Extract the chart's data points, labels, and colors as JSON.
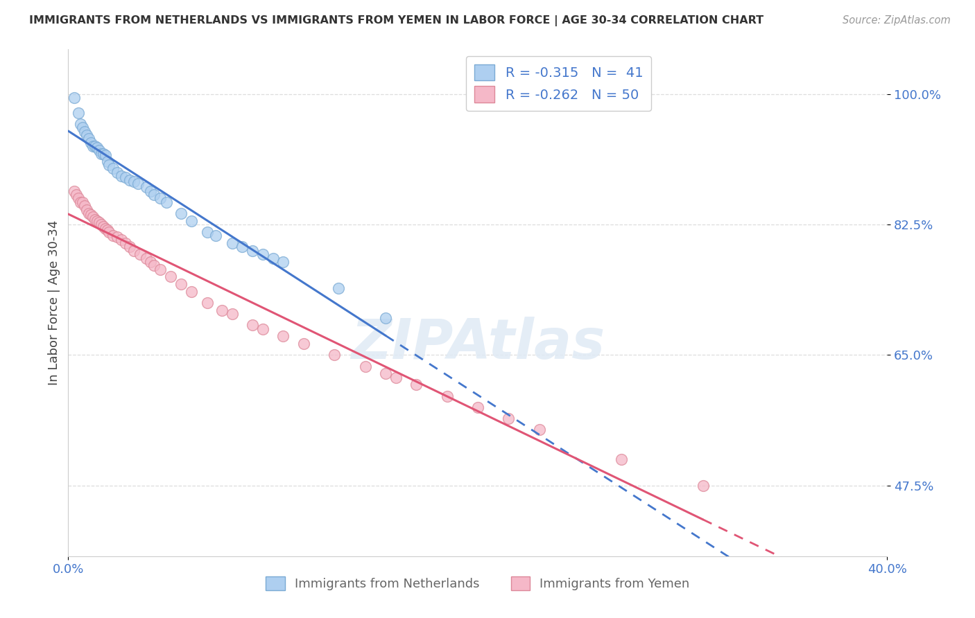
{
  "title": "IMMIGRANTS FROM NETHERLANDS VS IMMIGRANTS FROM YEMEN IN LABOR FORCE | AGE 30-34 CORRELATION CHART",
  "source": "Source: ZipAtlas.com",
  "ylabel": "In Labor Force | Age 30-34",
  "y_ticks": [
    1.0,
    0.825,
    0.65,
    0.475
  ],
  "y_tick_labels": [
    "100.0%",
    "82.5%",
    "65.0%",
    "47.5%"
  ],
  "xlim": [
    0.0,
    0.4
  ],
  "ylim": [
    0.38,
    1.06
  ],
  "background_color": "#ffffff",
  "watermark": "ZIPAtlas",
  "legend_r_netherlands": "-0.315",
  "legend_n_netherlands": "41",
  "legend_r_yemen": "-0.262",
  "legend_n_yemen": "50",
  "netherlands_color": "#aecff0",
  "netherlands_edge_color": "#7aaad4",
  "netherlands_line_color": "#4477cc",
  "yemen_color": "#f5b8c8",
  "yemen_edge_color": "#dd8899",
  "yemen_line_color": "#e05575",
  "scatter_size": 130,
  "scatter_alpha": 0.75,
  "netherlands_x": [
    0.003,
    0.005,
    0.006,
    0.007,
    0.008,
    0.009,
    0.01,
    0.011,
    0.012,
    0.013,
    0.014,
    0.015,
    0.016,
    0.017,
    0.018,
    0.019,
    0.02,
    0.022,
    0.024,
    0.026,
    0.028,
    0.03,
    0.032,
    0.034,
    0.038,
    0.04,
    0.042,
    0.045,
    0.048,
    0.055,
    0.06,
    0.068,
    0.072,
    0.08,
    0.085,
    0.09,
    0.095,
    0.1,
    0.105,
    0.132,
    0.155
  ],
  "netherlands_y": [
    0.995,
    0.975,
    0.96,
    0.955,
    0.95,
    0.945,
    0.94,
    0.935,
    0.93,
    0.93,
    0.928,
    0.925,
    0.92,
    0.92,
    0.918,
    0.91,
    0.905,
    0.9,
    0.895,
    0.89,
    0.888,
    0.885,
    0.883,
    0.88,
    0.875,
    0.87,
    0.865,
    0.86,
    0.855,
    0.84,
    0.83,
    0.815,
    0.81,
    0.8,
    0.795,
    0.79,
    0.785,
    0.78,
    0.775,
    0.74,
    0.7
  ],
  "yemen_x": [
    0.003,
    0.004,
    0.005,
    0.006,
    0.007,
    0.008,
    0.009,
    0.01,
    0.011,
    0.012,
    0.013,
    0.014,
    0.015,
    0.016,
    0.017,
    0.018,
    0.019,
    0.02,
    0.022,
    0.024,
    0.026,
    0.028,
    0.03,
    0.032,
    0.035,
    0.038,
    0.04,
    0.042,
    0.045,
    0.05,
    0.055,
    0.06,
    0.068,
    0.075,
    0.08,
    0.09,
    0.095,
    0.105,
    0.115,
    0.13,
    0.145,
    0.155,
    0.16,
    0.17,
    0.185,
    0.2,
    0.215,
    0.23,
    0.27,
    0.31
  ],
  "yemen_y": [
    0.87,
    0.865,
    0.86,
    0.855,
    0.855,
    0.85,
    0.845,
    0.84,
    0.838,
    0.835,
    0.832,
    0.83,
    0.828,
    0.825,
    0.822,
    0.82,
    0.818,
    0.815,
    0.81,
    0.808,
    0.805,
    0.8,
    0.795,
    0.79,
    0.785,
    0.78,
    0.775,
    0.77,
    0.765,
    0.755,
    0.745,
    0.735,
    0.72,
    0.71,
    0.705,
    0.69,
    0.685,
    0.675,
    0.665,
    0.65,
    0.635,
    0.625,
    0.62,
    0.61,
    0.595,
    0.58,
    0.565,
    0.55,
    0.51,
    0.475
  ]
}
